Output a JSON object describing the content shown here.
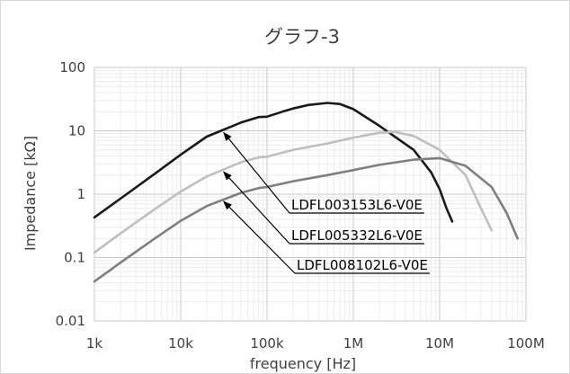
{
  "chart_data": {
    "type": "line",
    "title": "グラフ-3",
    "xlabel": "frequency [Hz]",
    "ylabel": "Impedance [kΩ]",
    "x_scale": "log",
    "y_scale": "log",
    "xlim": [
      1000,
      100000000
    ],
    "ylim": [
      0.01,
      100
    ],
    "x_ticks": [
      1000,
      10000,
      100000,
      1000000,
      10000000,
      100000000
    ],
    "x_tick_labels": [
      "1k",
      "10k",
      "100k",
      "1M",
      "10M",
      "100M"
    ],
    "y_ticks": [
      0.01,
      0.1,
      1,
      10,
      100
    ],
    "y_tick_labels": [
      "0.01",
      "0.1",
      "1",
      "10",
      "100"
    ],
    "grid": true,
    "legend": "none",
    "series": [
      {
        "name": "LDFL003153L6-V0E",
        "color": "#1a1a1a",
        "x": [
          1000,
          2000,
          5000,
          10000,
          20000,
          50000,
          80000,
          100000,
          150000,
          200000,
          300000,
          500000,
          700000,
          1000000,
          2000000,
          5000000,
          8000000,
          10000000,
          12000000,
          14000000
        ],
        "y": [
          0.43,
          0.85,
          2.1,
          4.2,
          8.1,
          13.5,
          16.5,
          16.7,
          20,
          22.5,
          25.5,
          27.5,
          26.5,
          22,
          12,
          5,
          2.2,
          1.2,
          0.6,
          0.37
        ]
      },
      {
        "name": "LDFL005332L6-V0E",
        "color": "#bfbfbf",
        "x": [
          1000,
          2000,
          5000,
          10000,
          20000,
          50000,
          80000,
          100000,
          150000,
          200000,
          500000,
          1000000,
          2000000,
          3000000,
          5000000,
          10000000,
          20000000,
          30000000,
          40000000
        ],
        "y": [
          0.12,
          0.24,
          0.58,
          1.1,
          1.9,
          3.2,
          3.8,
          3.9,
          4.5,
          5,
          6.3,
          7.8,
          9.3,
          9.6,
          8.3,
          5,
          2,
          0.6,
          0.27
        ]
      },
      {
        "name": "LDFL008102L6-V0E",
        "color": "#7f7f7f",
        "x": [
          1000,
          2000,
          5000,
          10000,
          20000,
          50000,
          80000,
          100000,
          200000,
          500000,
          1000000,
          2000000,
          5000000,
          10000000,
          20000000,
          40000000,
          60000000,
          80000000
        ],
        "y": [
          0.042,
          0.083,
          0.2,
          0.38,
          0.65,
          1.05,
          1.25,
          1.3,
          1.6,
          2,
          2.4,
          2.9,
          3.5,
          3.7,
          2.8,
          1.3,
          0.5,
          0.2
        ]
      }
    ],
    "annotations": [
      {
        "text": "LDFL003153L6-V0E",
        "series": 0,
        "arrow_to": [
          30000,
          10
        ]
      },
      {
        "text": "LDFL005332L6-V0E",
        "series": 1,
        "arrow_to": [
          30000,
          2.4
        ]
      },
      {
        "text": "LDFL008102L6-V0E",
        "series": 2,
        "arrow_to": [
          30000,
          0.82
        ]
      }
    ]
  }
}
